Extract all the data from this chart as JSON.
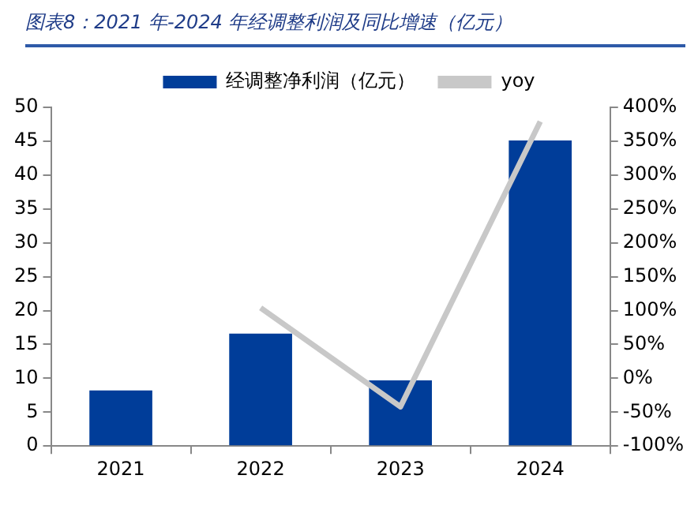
{
  "chart_data": {
    "type": "bar",
    "title": "图表8：2021 年-2024 年经调整利润及同比增速（亿元）",
    "categories": [
      "2021",
      "2022",
      "2023",
      "2024"
    ],
    "series": [
      {
        "name": "经调整净利润（亿元）",
        "color": "#003d99",
        "values": [
          8.2,
          16.6,
          9.7,
          45.1
        ]
      },
      {
        "name": "yoy",
        "type": "line",
        "axis": "y2",
        "color": "#c8c8c8",
        "values": [
          null,
          104,
          -42,
          379
        ]
      }
    ],
    "ylim": [
      0,
      50
    ],
    "yticks": [
      0,
      5,
      10,
      15,
      20,
      25,
      30,
      35,
      40,
      45,
      50
    ],
    "y2lim": [
      -100,
      400
    ],
    "y2ticks": [
      {
        "value": -100,
        "label": "-100%"
      },
      {
        "value": -50,
        "label": "-50%"
      },
      {
        "value": 0,
        "label": "0%"
      },
      {
        "value": 50,
        "label": "50%"
      },
      {
        "value": 100,
        "label": "100%"
      },
      {
        "value": 150,
        "label": "150%"
      },
      {
        "value": 200,
        "label": "200%"
      },
      {
        "value": 250,
        "label": "250%"
      },
      {
        "value": 300,
        "label": "300%"
      },
      {
        "value": 350,
        "label": "350%"
      },
      {
        "value": 400,
        "label": "400%"
      }
    ],
    "grid": false,
    "legend": "top",
    "marker": "none"
  }
}
